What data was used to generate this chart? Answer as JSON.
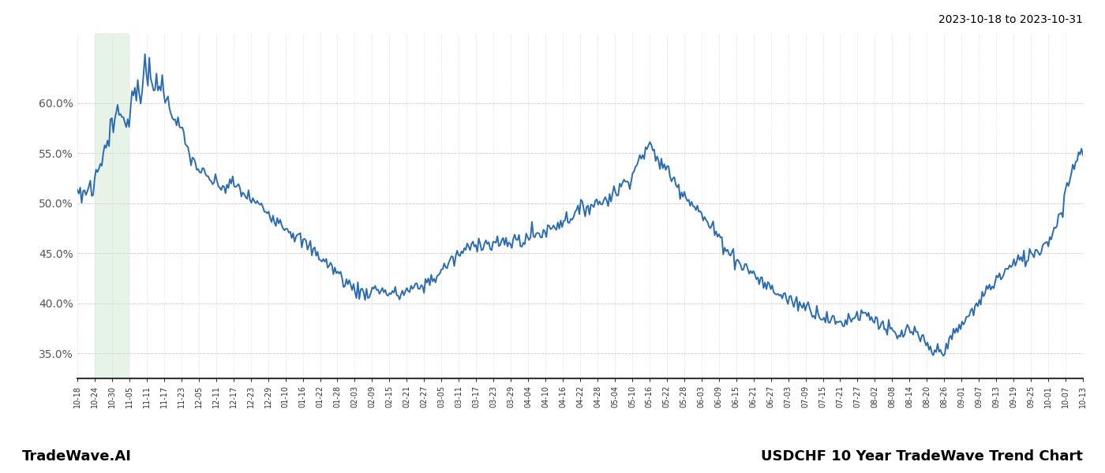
{
  "title_right": "2023-10-18 to 2023-10-31",
  "footer_left": "TradeWave.AI",
  "footer_right": "USDCHF 10 Year TradeWave Trend Chart",
  "line_color": "#2b6cb0",
  "highlight_color": "#c8e6c9",
  "highlight_alpha": 0.45,
  "background_color": "#ffffff",
  "grid_color": "#cccccc",
  "ylim": [
    0.325,
    0.67
  ],
  "yticks": [
    0.35,
    0.4,
    0.45,
    0.5,
    0.55,
    0.6
  ],
  "ytick_labels": [
    "35.0%",
    "40.0%",
    "45.0%",
    "50.0%",
    "55.0%",
    "60.0%"
  ],
  "xtick_labels": [
    "10-18",
    "10-24",
    "10-30",
    "11-05",
    "11-11",
    "11-17",
    "11-23",
    "12-05",
    "12-11",
    "12-17",
    "12-23",
    "12-29",
    "01-10",
    "01-16",
    "01-22",
    "01-28",
    "02-03",
    "02-09",
    "02-15",
    "02-21",
    "02-27",
    "03-05",
    "03-11",
    "03-17",
    "03-23",
    "03-29",
    "04-04",
    "04-10",
    "04-16",
    "04-22",
    "04-28",
    "05-04",
    "05-10",
    "05-16",
    "05-22",
    "05-28",
    "06-03",
    "06-09",
    "06-15",
    "06-21",
    "06-27",
    "07-03",
    "07-09",
    "07-15",
    "07-21",
    "07-27",
    "08-02",
    "08-08",
    "08-14",
    "08-20",
    "08-26",
    "09-01",
    "09-07",
    "09-13",
    "09-19",
    "09-25",
    "10-01",
    "10-07",
    "10-13"
  ],
  "highlight_xstart_label": "10-24",
  "highlight_xend_label": "11-05",
  "line_width": 1.4
}
